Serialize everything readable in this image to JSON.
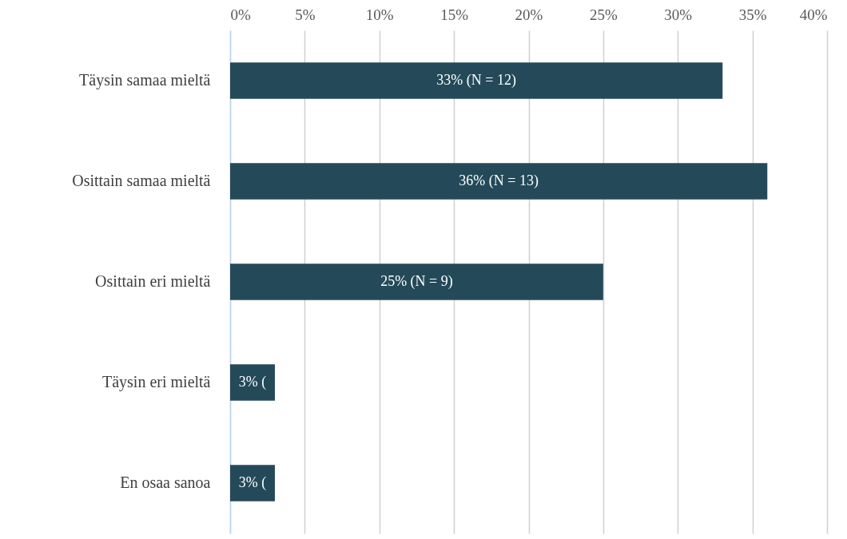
{
  "chart_data": {
    "type": "bar",
    "orientation": "horizontal",
    "categories": [
      "Täysin samaa mieltä",
      "Osittain samaa mieltä",
      "Osittain eri mieltä",
      "Täysin eri mieltä",
      "En osaa sanoa"
    ],
    "values": [
      33,
      36,
      25,
      3,
      3
    ],
    "value_labels": [
      "33% (N = 12)",
      "36% (N = 13)",
      "25% (N = 9)",
      "3% (",
      "3% ("
    ],
    "color": "#244a5a",
    "xlim": [
      0,
      40
    ],
    "xticks": [
      {
        "value": 0,
        "label": "0%"
      },
      {
        "value": 5,
        "label": "5%"
      },
      {
        "value": 10,
        "label": "10%"
      },
      {
        "value": 15,
        "label": "15%"
      },
      {
        "value": 20,
        "label": "20%"
      },
      {
        "value": 25,
        "label": "25%"
      },
      {
        "value": 30,
        "label": "30%"
      },
      {
        "value": 35,
        "label": "35%"
      },
      {
        "value": 40,
        "label": "40%"
      }
    ],
    "grid": "x"
  }
}
